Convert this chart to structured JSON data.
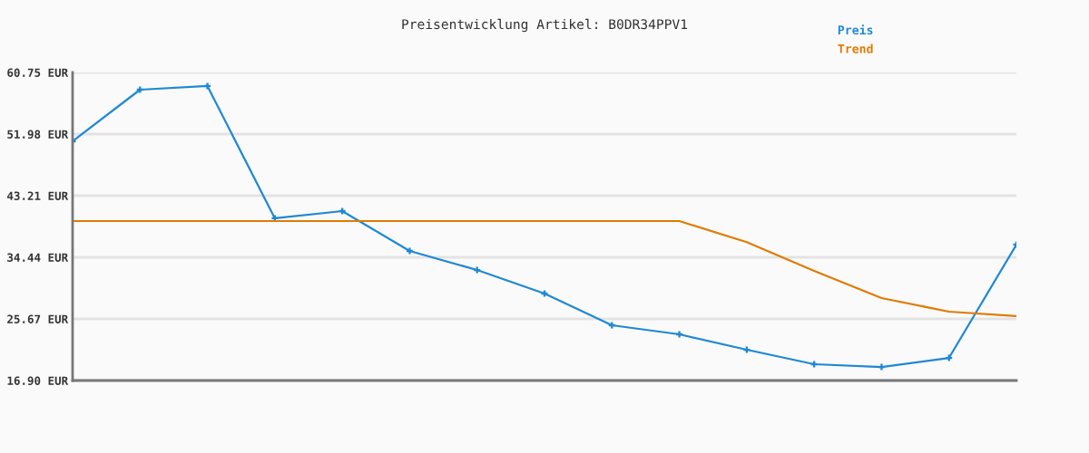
{
  "chart_data": {
    "type": "line",
    "title": "Preisentwicklung Artikel: B0DR34PPV1",
    "categories": [
      null,
      null,
      null,
      null,
      null,
      null,
      null,
      null,
      null,
      null,
      null,
      null,
      null,
      null,
      null
    ],
    "series": [
      {
        "name": "Preis",
        "color": "#1f88d4",
        "marker": "cross",
        "values": [
          50.95,
          58.3,
          58.82,
          39.99,
          41.02,
          35.34,
          32.63,
          29.28,
          24.77,
          23.48,
          21.28,
          19.22,
          18.83,
          20.12,
          36.25
        ]
      },
      {
        "name": "Trend",
        "color": "#e07b00",
        "values": [
          39.6,
          39.6,
          39.6,
          39.6,
          39.6,
          39.6,
          39.6,
          39.6,
          39.6,
          39.6,
          36.6,
          32.5,
          28.64,
          26.7,
          26.06
        ]
      }
    ],
    "ylim": [
      16.9,
      60.75
    ],
    "yticks": [
      {
        "value": 16.9,
        "label": "16.90 EUR"
      },
      {
        "value": 25.67,
        "label": "25.67 EUR"
      },
      {
        "value": 34.44,
        "label": "34.44 EUR"
      },
      {
        "value": 43.21,
        "label": "43.21 EUR"
      },
      {
        "value": 51.98,
        "label": "51.98 EUR"
      },
      {
        "value": 60.75,
        "label": "60.75 EUR"
      }
    ],
    "grid": "y",
    "legend": "top right",
    "tick_labels": "y",
    "line_style": "solid"
  }
}
